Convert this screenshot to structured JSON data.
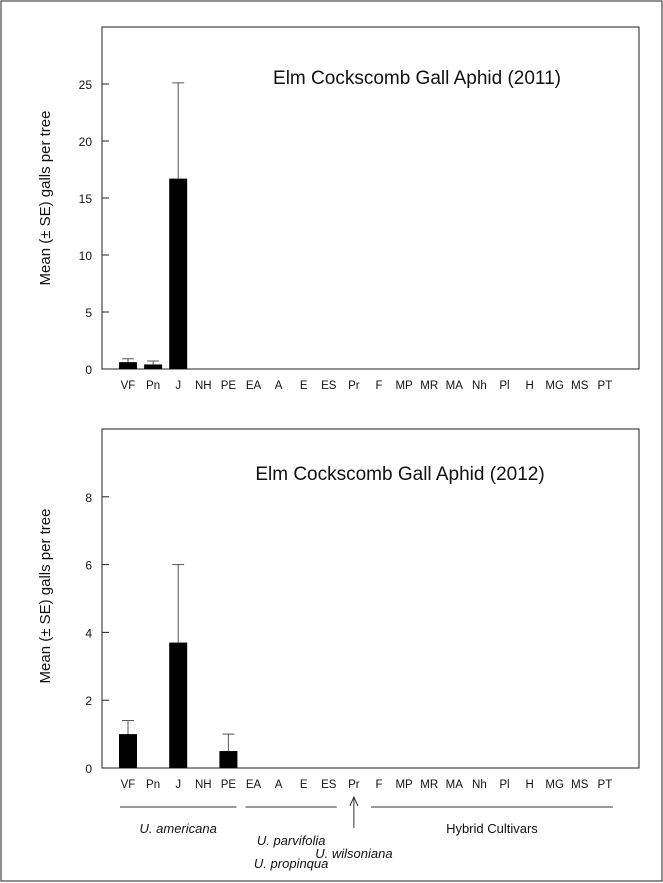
{
  "chart_data": [
    {
      "type": "bar",
      "title": "Elm Cockscomb Gall Aphid (2011)",
      "xlabel": "",
      "ylabel": "Mean (± SE) galls per tree",
      "ylim": [
        0,
        30
      ],
      "yticks": [
        0,
        5,
        10,
        15,
        20,
        25
      ],
      "grid": false,
      "categories": [
        "VF",
        "Pn",
        "J",
        "NH",
        "PE",
        "EA",
        "A",
        "E",
        "ES",
        "Pr",
        "F",
        "MP",
        "MR",
        "MA",
        "Nh",
        "Pl",
        "H",
        "MG",
        "MS",
        "PT"
      ],
      "values": [
        0.6,
        0.4,
        16.7,
        0,
        0,
        0,
        0,
        0,
        0,
        0,
        0,
        0,
        0,
        0,
        0,
        0,
        0,
        0,
        0,
        0
      ],
      "se": [
        0.3,
        0.3,
        8.4,
        0,
        0,
        0,
        0,
        0,
        0,
        0,
        0,
        0,
        0,
        0,
        0,
        0,
        0,
        0,
        0,
        0
      ]
    },
    {
      "type": "bar",
      "title": "Elm Cockscomb Gall Aphid (2012)",
      "xlabel": "",
      "ylabel": "Mean (± SE) galls per tree",
      "ylim": [
        0,
        10
      ],
      "yticks": [
        0,
        2,
        4,
        6,
        8
      ],
      "grid": false,
      "categories": [
        "VF",
        "Pn",
        "J",
        "NH",
        "PE",
        "EA",
        "A",
        "E",
        "ES",
        "Pr",
        "F",
        "MP",
        "MR",
        "MA",
        "Nh",
        "Pl",
        "H",
        "MG",
        "MS",
        "PT"
      ],
      "values": [
        1.0,
        0,
        3.7,
        0,
        0.5,
        0,
        0,
        0,
        0,
        0,
        0,
        0,
        0,
        0,
        0,
        0,
        0,
        0,
        0,
        0
      ],
      "se": [
        0.4,
        0,
        2.3,
        0,
        0.5,
        0,
        0,
        0,
        0,
        0,
        0,
        0,
        0,
        0,
        0,
        0,
        0,
        0,
        0,
        0
      ]
    }
  ],
  "groups": [
    {
      "name": "U. americana",
      "italic": true,
      "from": "VF",
      "to": "PE",
      "marker": "line"
    },
    {
      "name": "U. parvifolia",
      "italic": true,
      "from": "EA",
      "to": "ES",
      "marker": "line"
    },
    {
      "name": "U. propinqua",
      "italic": true,
      "from": "EA",
      "to": "ES",
      "marker": "none"
    },
    {
      "name": "U. wilsoniana",
      "italic": true,
      "from": "Pr",
      "to": "Pr",
      "marker": "arrow"
    },
    {
      "name": "Hybrid Cultivars",
      "italic": false,
      "from": "F",
      "to": "PT",
      "marker": "line"
    }
  ]
}
